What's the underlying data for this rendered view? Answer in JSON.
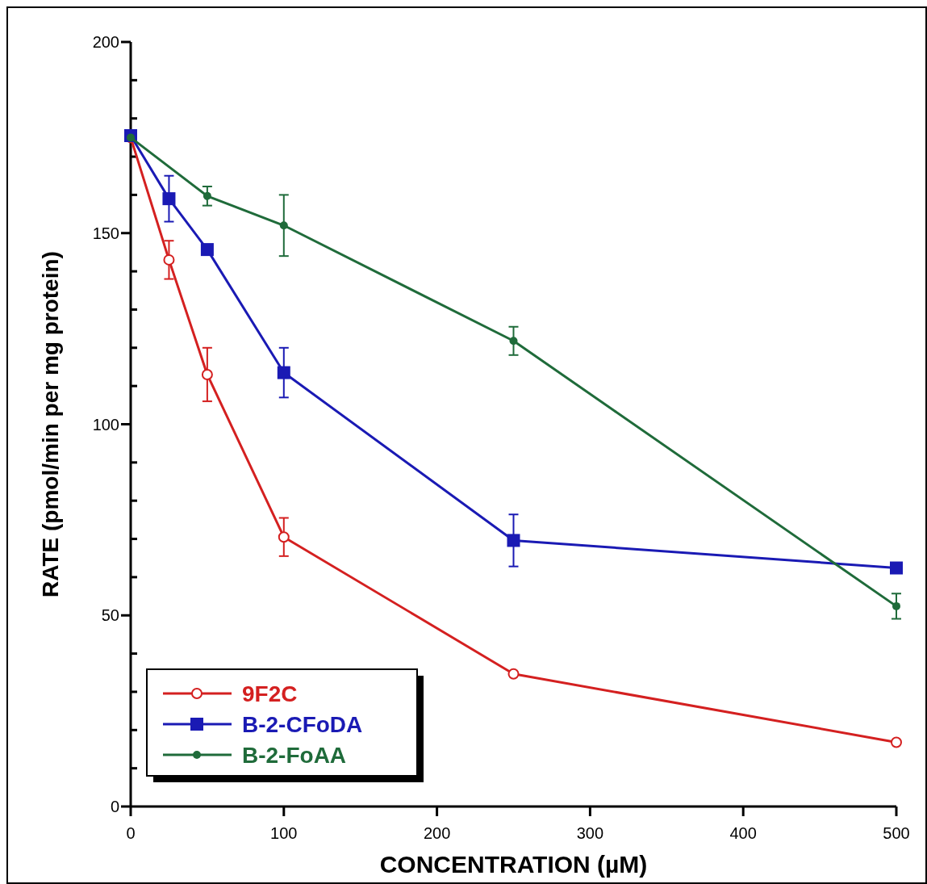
{
  "chart_data": {
    "type": "line",
    "xlabel": "CONCENTRATION (µM)",
    "ylabel": "RATE (pmol/min per mg protein)",
    "x": [
      0,
      25,
      50,
      100,
      250,
      500
    ],
    "series": [
      {
        "name": "9F2C",
        "color": "#d42020",
        "marker": "circle",
        "values": [
          175,
          143,
          113,
          70.5,
          34.7,
          16.8
        ],
        "errors": [
          null,
          5,
          7,
          5,
          null,
          null
        ]
      },
      {
        "name": "B-2-CFoDA",
        "color": "#1a1ab4",
        "marker": "square",
        "values": [
          175.5,
          159,
          145.7,
          113.5,
          69.6,
          62.4
        ],
        "errors": [
          null,
          6,
          null,
          6.5,
          6.8,
          null
        ]
      },
      {
        "name": "B-2-FoAA",
        "color": "#1f6b3a",
        "marker": "circle",
        "values": [
          175,
          159.7,
          152,
          121.8,
          52.4
        ],
        "x": [
          0,
          50,
          100,
          250,
          500
        ],
        "errors": [
          null,
          2.5,
          8,
          3.7,
          3.3
        ]
      }
    ],
    "xlim": [
      0,
      500
    ],
    "xticks": [
      0,
      100,
      200,
      300,
      400,
      500
    ],
    "ylim": [
      0,
      200
    ],
    "yticks": [
      0,
      {
        "value": 10,
        "label": null
      },
      {
        "value": 20,
        "label": null
      },
      {
        "value": 30,
        "label": null
      },
      {
        "value": 40,
        "label": null
      },
      50,
      {
        "value": 60,
        "label": null
      },
      {
        "value": 70,
        "label": null
      },
      {
        "value": 80,
        "label": null
      },
      {
        "value": 90,
        "label": null
      },
      100,
      {
        "value": 110,
        "label": null
      },
      {
        "value": 120,
        "label": null
      },
      {
        "value": 130,
        "label": null
      },
      {
        "value": 140,
        "label": null
      },
      150,
      {
        "value": 160,
        "label": null
      },
      {
        "value": 170,
        "label": null
      },
      {
        "value": 180,
        "label": null
      },
      {
        "value": 190,
        "label": null
      },
      200
    ],
    "legend": "bottom left",
    "grid": false,
    "line_style": "solid"
  }
}
